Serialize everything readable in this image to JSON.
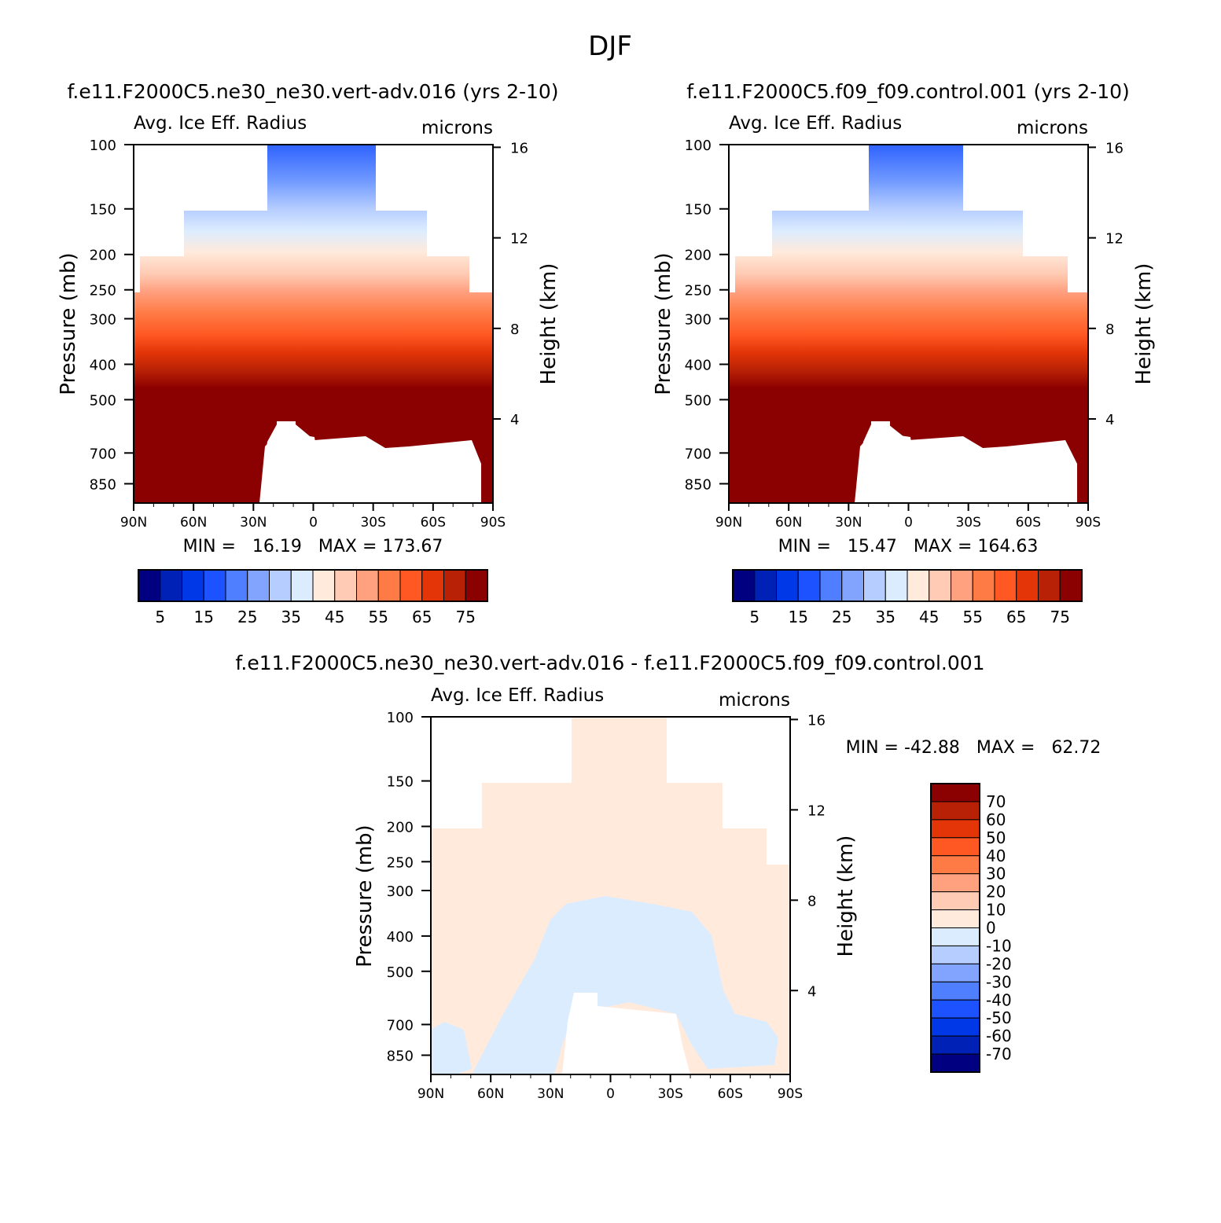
{
  "figure": {
    "season": "DJF",
    "units": "microns",
    "variable": "Avg. Ice Eff. Radius",
    "pressure_axis_label": "Pressure (mb)",
    "height_axis_label": "Height (km)",
    "pressure_ticks": [
      "100",
      "150",
      "200",
      "250",
      "300",
      "400",
      "500",
      "700",
      "850"
    ],
    "height_ticks": [
      "16",
      "12",
      "8",
      "4"
    ],
    "lat_ticks": [
      "90N",
      "60N",
      "30N",
      "0",
      "30S",
      "60S",
      "90S"
    ]
  },
  "colors": {
    "scale": [
      "#000080",
      "#0021b6",
      "#0037e6",
      "#1c52ff",
      "#4f7eff",
      "#82a4ff",
      "#b6cdff",
      "#dcecff",
      "#ffeadc",
      "#ffcbb4",
      "#ffa07f",
      "#ff7b45",
      "#ff5823",
      "#e33508",
      "#b82105",
      "#8b0000"
    ],
    "fill_panel": "#8b0000"
  },
  "chart_data": [
    {
      "type": "heatmap",
      "title": "f.e11.F2000C5.ne30_ne30.vert-adv.016 (yrs 2-10)",
      "subtitle": "Avg. Ice Eff. Radius",
      "units": "microns",
      "ylabel": "Pressure (mb)",
      "ylabel_right": "Height (km)",
      "x_ticks": [
        "90N",
        "60N",
        "30N",
        "0",
        "30S",
        "60S",
        "90S"
      ],
      "y_ticks": [
        100,
        150,
        200,
        250,
        300,
        400,
        500,
        700,
        850
      ],
      "y_right_ticks": [
        16,
        12,
        8,
        4
      ],
      "stats_text": "MIN =   16.19   MAX = 173.67",
      "min": 16.19,
      "max": 173.67,
      "colorbar_labels": [
        "5",
        "15",
        "25",
        "35",
        "45",
        "55",
        "65",
        "75"
      ],
      "colorbar_levels": [
        0,
        5,
        10,
        15,
        20,
        25,
        30,
        35,
        40,
        45,
        50,
        55,
        60,
        65,
        70,
        75
      ]
    },
    {
      "type": "heatmap",
      "title": "f.e11.F2000C5.f09_f09.control.001 (yrs 2-10)",
      "subtitle": "Avg. Ice Eff. Radius",
      "units": "microns",
      "ylabel": "Pressure (mb)",
      "ylabel_right": "Height (km)",
      "x_ticks": [
        "90N",
        "60N",
        "30N",
        "0",
        "30S",
        "60S",
        "90S"
      ],
      "y_ticks": [
        100,
        150,
        200,
        250,
        300,
        400,
        500,
        700,
        850
      ],
      "y_right_ticks": [
        16,
        12,
        8,
        4
      ],
      "stats_text": "MIN =   15.47   MAX = 164.63",
      "min": 15.47,
      "max": 164.63,
      "colorbar_labels": [
        "5",
        "15",
        "25",
        "35",
        "45",
        "55",
        "65",
        "75"
      ],
      "colorbar_levels": [
        0,
        5,
        10,
        15,
        20,
        25,
        30,
        35,
        40,
        45,
        50,
        55,
        60,
        65,
        70,
        75
      ]
    },
    {
      "type": "heatmap",
      "title": "f.e11.F2000C5.ne30_ne30.vert-adv.016 - f.e11.F2000C5.f09_f09.control.001",
      "subtitle": "Avg. Ice Eff. Radius",
      "units": "microns",
      "ylabel": "Pressure (mb)",
      "ylabel_right": "Height (km)",
      "x_ticks": [
        "90N",
        "60N",
        "30N",
        "0",
        "30S",
        "60S",
        "90S"
      ],
      "y_ticks": [
        100,
        150,
        200,
        250,
        300,
        400,
        500,
        700,
        850
      ],
      "y_right_ticks": [
        16,
        12,
        8,
        4
      ],
      "stats_text": "MIN = -42.88   MAX =   62.72",
      "min": -42.88,
      "max": 62.72,
      "colorbar_labels": [
        "70",
        "60",
        "50",
        "40",
        "30",
        "20",
        "10",
        "0",
        "-10",
        "-20",
        "-30",
        "-40",
        "-50",
        "-60",
        "-70"
      ],
      "colorbar_levels": [
        70,
        60,
        50,
        40,
        30,
        20,
        10,
        0,
        -10,
        -20,
        -30,
        -40,
        -50,
        -60,
        -70
      ]
    }
  ]
}
